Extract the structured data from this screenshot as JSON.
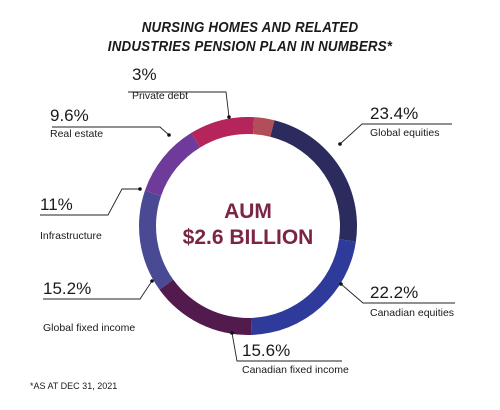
{
  "title_line1": "NURSING HOMES AND RELATED",
  "title_line2": "INDUSTRIES PENSION PLAN IN NUMBERS*",
  "center_line1": "AUM",
  "center_line2": "$2.6 BILLION",
  "footnote": "*AS AT DEC 31, 2021",
  "chart_data": {
    "type": "pie",
    "donut": true,
    "unit": "%",
    "slices": [
      {
        "label": "Global equities",
        "value": 23.4,
        "display": "23.4%",
        "color": "#2b2b5e"
      },
      {
        "label": "Canadian equities",
        "value": 22.2,
        "display": "22.2%",
        "color": "#2e3b9a"
      },
      {
        "label": "Canadian fixed income",
        "value": 15.6,
        "display": "15.6%",
        "color": "#531a4e"
      },
      {
        "label": "Global fixed income",
        "value": 15.2,
        "display": "15.2%",
        "color": "#4a4a94"
      },
      {
        "label": "Infrastructure",
        "value": 11,
        "display": "11%",
        "color": "#6e3b9a"
      },
      {
        "label": "Real estate",
        "value": 9.6,
        "display": "9.6%",
        "color": "#b5255b"
      },
      {
        "label": "Private debt",
        "value": 3,
        "display": "3%",
        "color": "#b24e5a"
      }
    ]
  }
}
